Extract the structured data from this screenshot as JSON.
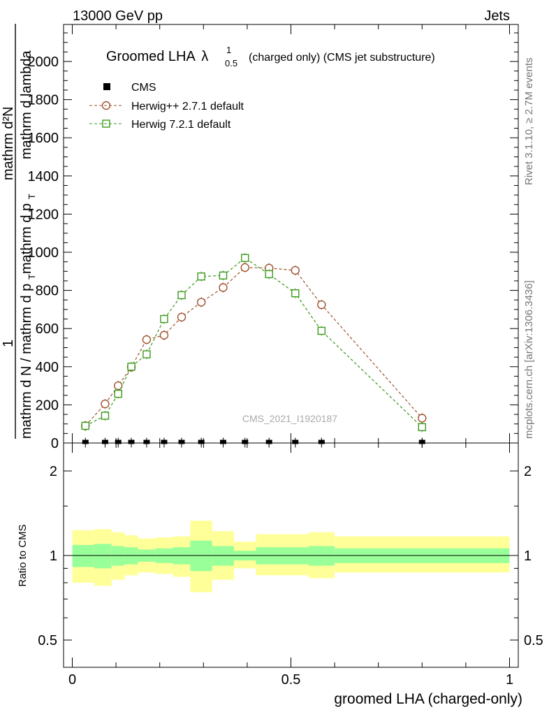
{
  "header": {
    "left": "13000 GeV pp",
    "right": "Jets"
  },
  "side_texts": {
    "rivet": "Rivet 3.1.10, ≥ 2.7M events",
    "mcplots": "mcplots.cern.ch [arXiv:1306.3436]"
  },
  "chart_data": {
    "type": "line",
    "title_main": "Groomed LHA",
    "title_symbol": "λ",
    "title_sup": "1",
    "title_sub": "0.5",
    "title_rest": "(charged only) (CMS jet substructure)",
    "watermark": "CMS_2021_I1920187",
    "ylabel_top": "1",
    "ylabel_numerator": "mathrm d²N",
    "ylabel_den_a": "mathrm d N / mathrm d p",
    "ylabel_den_a_sub": "T",
    "ylabel_den_b": "mathrm d p",
    "ylabel_den_b_sub": "T",
    "ylabel_den_c": "mathrm d lambda",
    "xlabel": "groomed LHA (charged-only)",
    "ratio_ylabel": "Ratio to CMS",
    "xlim": [
      0,
      1
    ],
    "ylim": [
      0,
      2200
    ],
    "ratio_ylim": [
      0.4,
      2.3
    ],
    "x_ticks": [
      {
        "v": 0,
        "label": "0"
      },
      {
        "v": 0.5,
        "label": "0.5"
      },
      {
        "v": 1,
        "label": "1"
      }
    ],
    "y_ticks": [
      {
        "v": 0,
        "label": "0"
      },
      {
        "v": 200,
        "label": "200"
      },
      {
        "v": 400,
        "label": "400"
      },
      {
        "v": 600,
        "label": "600"
      },
      {
        "v": 800,
        "label": "800"
      },
      {
        "v": 1000,
        "label": "1000"
      },
      {
        "v": 1200,
        "label": "1200"
      },
      {
        "v": 1400,
        "label": "1400"
      },
      {
        "v": 1600,
        "label": "1600"
      },
      {
        "v": 1800,
        "label": "1800"
      },
      {
        "v": 2000,
        "label": "2000"
      }
    ],
    "ratio_ticks": [
      {
        "v": 0.5,
        "label": "0.5"
      },
      {
        "v": 1,
        "label": "1"
      },
      {
        "v": 2,
        "label": "2"
      }
    ],
    "series": [
      {
        "name": "CMS",
        "marker": "filled-square",
        "color": "#000000",
        "x": [
          0.03,
          0.075,
          0.105,
          0.135,
          0.17,
          0.21,
          0.25,
          0.295,
          0.345,
          0.395,
          0.45,
          0.51,
          0.57,
          0.8
        ],
        "y": [
          2,
          2,
          2,
          2,
          2,
          2,
          2,
          2,
          2,
          2,
          2,
          2,
          2,
          2
        ]
      },
      {
        "name": "Herwig++ 2.7.1 default",
        "marker": "open-circle",
        "color": "#a0522d",
        "x": [
          0.03,
          0.075,
          0.105,
          0.135,
          0.17,
          0.21,
          0.25,
          0.295,
          0.345,
          0.395,
          0.45,
          0.51,
          0.57,
          0.8
        ],
        "y": [
          90,
          205,
          300,
          398,
          542,
          565,
          660,
          738,
          815,
          920,
          917,
          905,
          725,
          130
        ]
      },
      {
        "name": "Herwig 7.2.1 default",
        "marker": "open-square",
        "color": "#3a9a1a",
        "x": [
          0.03,
          0.075,
          0.105,
          0.135,
          0.17,
          0.21,
          0.25,
          0.295,
          0.345,
          0.395,
          0.45,
          0.51,
          0.57,
          0.8
        ],
        "y": [
          90,
          143,
          258,
          400,
          465,
          650,
          775,
          873,
          878,
          970,
          885,
          785,
          588,
          83
        ]
      }
    ],
    "ratio_bands": [
      {
        "x0": 0.0,
        "x1": 0.05,
        "inner": [
          0.91,
          1.09
        ],
        "outer": [
          0.8,
          1.23
        ]
      },
      {
        "x0": 0.05,
        "x1": 0.09,
        "inner": [
          0.9,
          1.1
        ],
        "outer": [
          0.78,
          1.24
        ]
      },
      {
        "x0": 0.09,
        "x1": 0.12,
        "inner": [
          0.92,
          1.08
        ],
        "outer": [
          0.82,
          1.21
        ]
      },
      {
        "x0": 0.12,
        "x1": 0.15,
        "inner": [
          0.93,
          1.07
        ],
        "outer": [
          0.85,
          1.18
        ]
      },
      {
        "x0": 0.15,
        "x1": 0.19,
        "inner": [
          0.95,
          1.05
        ],
        "outer": [
          0.87,
          1.15
        ]
      },
      {
        "x0": 0.19,
        "x1": 0.23,
        "inner": [
          0.94,
          1.06
        ],
        "outer": [
          0.86,
          1.16
        ]
      },
      {
        "x0": 0.23,
        "x1": 0.27,
        "inner": [
          0.93,
          1.07
        ],
        "outer": [
          0.84,
          1.17
        ]
      },
      {
        "x0": 0.27,
        "x1": 0.32,
        "inner": [
          0.88,
          1.13
        ],
        "outer": [
          0.74,
          1.33
        ]
      },
      {
        "x0": 0.32,
        "x1": 0.37,
        "inner": [
          0.92,
          1.08
        ],
        "outer": [
          0.82,
          1.22
        ]
      },
      {
        "x0": 0.37,
        "x1": 0.42,
        "inner": [
          0.96,
          1.04
        ],
        "outer": [
          0.9,
          1.12
        ]
      },
      {
        "x0": 0.42,
        "x1": 0.54,
        "inner": [
          0.93,
          1.07
        ],
        "outer": [
          0.85,
          1.19
        ]
      },
      {
        "x0": 0.54,
        "x1": 0.6,
        "inner": [
          0.92,
          1.08
        ],
        "outer": [
          0.83,
          1.21
        ]
      },
      {
        "x0": 0.6,
        "x1": 1.0,
        "inner": [
          0.94,
          1.06
        ],
        "outer": [
          0.87,
          1.17
        ]
      }
    ]
  }
}
